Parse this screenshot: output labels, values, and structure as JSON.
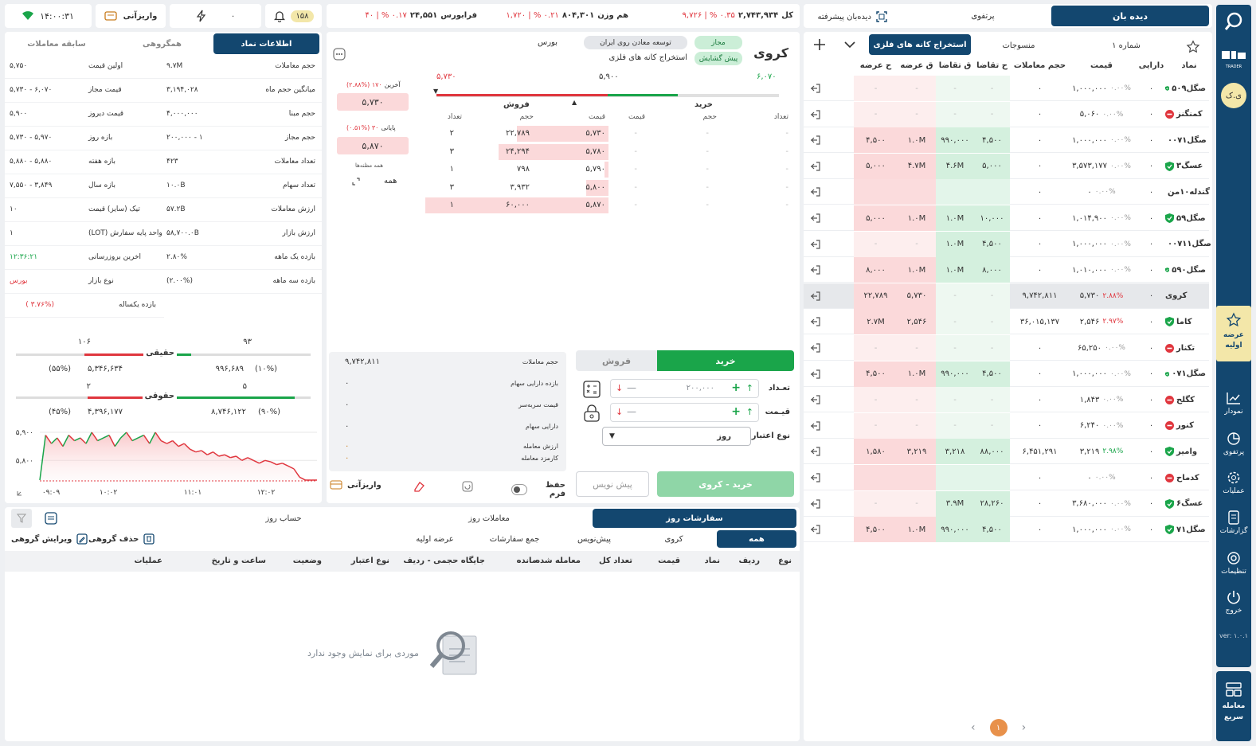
{
  "header": {
    "watch_tab": "دیده بان",
    "portfolio_tab": "پرتفوی",
    "advanced_watch": "دیده‌بان پیشرفته",
    "total_label": "کل",
    "total_value": "۲,۷۴۳,۹۳۴",
    "total_change": "۰.۳۵ % | ۹,۷۲۶",
    "weighted_label": "هم وزن",
    "weighted_value": "۸۰۴,۳۰۱",
    "weighted_change": "۰.۲۱ % | ۱,۷۲۰",
    "farabourse_label": "فرابورس",
    "farabourse_value": "۲۴,۵۵۱",
    "farabourse_change": "۰.۱۷ % | ۴۰",
    "notif_count": "۱۵۸",
    "lightning_count": "۰",
    "deposit_label": "واریزآنی",
    "clock": "۱۴:۰۰:۳۱"
  },
  "sidebar": {
    "avatar": "ی.ک",
    "brand": "TRADER",
    "items": [
      "عرضه اولیه",
      "نمودار",
      "پرتفوی",
      "عملیات",
      "گزارشات",
      "تنظیمات",
      "خروج"
    ],
    "version": "ver: ۱.۰.۱",
    "quick_trade": "معامله سریع"
  },
  "watchlist": {
    "tabs": [
      "شماره ۱",
      "منسوجات",
      "استخراج کانه های فلزی"
    ],
    "columns": [
      "نماد",
      "دارایی",
      "قیمت",
      "حجم معاملات",
      "ح تقاضا",
      "ق تقاضا",
      "ق عرضه",
      "ح عرضه"
    ],
    "rows": [
      {
        "sym": "صگل۵۰۹",
        "st": "g",
        "asset": "۰",
        "pct": "۰.۰۰%",
        "price": "۱,۰۰۰,۰۰۰",
        "vol": "۰",
        "dv": "-",
        "dp": "-",
        "sp": "-",
        "sv": "-"
      },
      {
        "sym": "کمنگنز",
        "st": "r",
        "asset": "۰",
        "pct": "۰.۰۰%",
        "price": "۵,۰۶۰",
        "vol": "۰",
        "dv": "-",
        "dp": "-",
        "sp": "-",
        "sv": "-"
      },
      {
        "sym": "صگل۰۰۷۱",
        "st": "g",
        "asset": "۰",
        "pct": "۰.۰۰%",
        "price": "۱,۰۰۰,۰۰۰",
        "vol": "۰",
        "dv": "۴,۵۰۰",
        "dp": "۹۹۰,۰۰۰",
        "sp": "۱.۰M",
        "sv": "۴,۵۰۰"
      },
      {
        "sym": "عسگ۳",
        "st": "g",
        "asset": "۰",
        "pct": "۰.۰۰%",
        "price": "۳,۵۷۳,۱۷۷",
        "vol": "۰",
        "dv": "۵,۰۰۰",
        "dp": "۴.۶M",
        "sp": "۴.۷M",
        "sv": "۵,۰۰۰"
      },
      {
        "sym": "گندله۱۰من",
        "st": "r",
        "asset": "۰",
        "pct": "۰.۰۰%",
        "price": "۰",
        "vol": "۰",
        "dv": "",
        "dp": "",
        "sp": "",
        "sv": ""
      },
      {
        "sym": "صگل۵۹",
        "st": "g",
        "asset": "۰",
        "pct": "۰.۰۰%",
        "price": "۱,۰۱۴,۹۰۰",
        "vol": "۰",
        "dv": "۱۰,۰۰۰",
        "dp": "۱.۰M",
        "sp": "۱.۰M",
        "sv": "۵,۰۰۰"
      },
      {
        "sym": "صگل۰۰۷۱۱",
        "st": "g",
        "asset": "۰",
        "pct": "۰.۰۰%",
        "price": "۱,۰۰۰,۰۰۰",
        "vol": "۰",
        "dv": "۴,۵۰۰",
        "dp": "۱.۰M",
        "sp": "-",
        "sv": "-"
      },
      {
        "sym": "صگل۵۹۰",
        "st": "g",
        "asset": "۰",
        "pct": "۰.۰۰%",
        "price": "۱,۰۱۰,۰۰۰",
        "vol": "۰",
        "dv": "۸,۰۰۰",
        "dp": "۱.۰M",
        "sp": "۱.۰M",
        "sv": "۸,۰۰۰"
      },
      {
        "sym": "کروی",
        "st": "none",
        "asset": "۰",
        "pct": "۲.۸۸%",
        "pneg": "r",
        "price": "۵,۷۳۰",
        "vol": "۹,۷۴۲,۸۱۱",
        "dv": "-",
        "dp": "-",
        "sp": "۵,۷۳۰",
        "sv": "۲۲,۷۸۹"
      },
      {
        "sym": "کاما",
        "st": "g",
        "asset": "۰",
        "pct": "۲.۹۷%",
        "pneg": "r",
        "price": "۲,۵۴۶",
        "vol": "۳۶,۰۱۵,۱۳۷",
        "dv": "-",
        "dp": "-",
        "sp": "۲,۵۴۶",
        "sv": "۲.۷M"
      },
      {
        "sym": "تکنار",
        "st": "r",
        "asset": "۰",
        "pct": "۰.۰۰%",
        "price": "۶۵,۲۵۰",
        "vol": "۰",
        "dv": "-",
        "dp": "-",
        "sp": "-",
        "sv": "-"
      },
      {
        "sym": "صگل۰۷۱",
        "st": "g",
        "asset": "۰",
        "pct": "۰.۰۰%",
        "price": "۱,۰۰۰,۰۰۰",
        "vol": "۰",
        "dv": "۴,۵۰۰",
        "dp": "۹۹۰,۰۰۰",
        "sp": "۱.۰M",
        "sv": "۴,۵۰۰"
      },
      {
        "sym": "کگلح",
        "st": "r",
        "asset": "۰",
        "pct": "۰.۰۰%",
        "price": "۱,۸۴۳",
        "vol": "۰",
        "dv": "-",
        "dp": "-",
        "sp": "-",
        "sv": "-"
      },
      {
        "sym": "کنور",
        "st": "r",
        "asset": "۰",
        "pct": "۰.۰۰%",
        "price": "۶,۲۴۰",
        "vol": "۰",
        "dv": "-",
        "dp": "-",
        "sp": "-",
        "sv": "-"
      },
      {
        "sym": "وامیر",
        "st": "g",
        "asset": "۰",
        "pct": "۲.۹۸%",
        "pneg": "g",
        "price": "۳,۲۱۹",
        "vol": "۶,۴۵۱,۲۹۱",
        "dv": "۸۸,۰۰۰",
        "dp": "۳,۲۱۸",
        "sp": "۳,۲۱۹",
        "sv": "۱,۵۸۰"
      },
      {
        "sym": "کدماح",
        "st": "r",
        "asset": "۰",
        "pct": "۰.۰۰%",
        "price": "۰",
        "vol": "۰",
        "dv": "",
        "dp": "",
        "sp": "",
        "sv": ""
      },
      {
        "sym": "عسگ۶",
        "st": "g",
        "asset": "۰",
        "pct": "۰.۰۰%",
        "price": "۳,۶۸۰,۰۰۰",
        "vol": "۰",
        "dv": "۲۸,۲۶۰",
        "dp": "۳.۹M",
        "sp": "-",
        "sv": "-"
      },
      {
        "sym": "صگل۷۱",
        "st": "g",
        "asset": "۰",
        "pct": "۰.۰۰%",
        "price": "۱,۰۰۰,۰۰۰",
        "vol": "۰",
        "dv": "۴,۵۰۰",
        "dp": "۹۹۰,۰۰۰",
        "sp": "۱.۰M",
        "sv": "۴,۵۰۰"
      }
    ],
    "page": "۱"
  },
  "symbol": {
    "name": "کروی",
    "company": "توسعه معادن روی ایران",
    "industry": "استخراج کانه های فلزی",
    "market": "بورس",
    "status": "مجاز",
    "state": "پیش گشایش",
    "range_low": "۵,۷۳۰",
    "range_mid": "۵,۹۰۰",
    "range_high": "۶,۰۷۰",
    "last_label": "آخرین",
    "last_change": "۱۷۰ (۲.۸۸%)",
    "last_price": "۵,۷۳۰",
    "close_label": "پایانی",
    "close_change": "۳۰ (۰.۵۱%)",
    "close_price": "۵,۸۷۰",
    "suspicious_label": "همه مظنه‌ها",
    "all_label": "همه"
  },
  "orderbook": {
    "buy_label": "خرید",
    "sell_label": "فروش",
    "cols": [
      "تعداد",
      "حجم",
      "قیمت",
      "قیمت",
      "حجم",
      "تعداد"
    ],
    "sell": [
      {
        "count": "۲",
        "vol": "۲۲,۷۸۹",
        "price": "۵,۷۳۰",
        "w": 0.5
      },
      {
        "count": "۳",
        "vol": "۲۴,۲۹۴",
        "price": "۵,۷۸۰",
        "w": 0.6
      },
      {
        "count": "۱",
        "vol": "۷۹۸",
        "price": "۵,۷۹۰",
        "w": 0.02
      },
      {
        "count": "۳",
        "vol": "۳,۹۳۲",
        "price": "۵,۸۰۰",
        "w": 0.12
      },
      {
        "count": "۱",
        "vol": "۶۰,۰۰۰",
        "price": "۵,۸۷۰",
        "w": 1.0
      }
    ]
  },
  "stats": {
    "rows": [
      [
        "حجم معاملات",
        "۹,۷۴۲,۸۱۱"
      ],
      [
        "بازده دارایی سهام",
        "۰"
      ],
      [
        "قیمت سربه‌سر",
        "۰"
      ],
      [
        "دارایی سهام",
        "۰"
      ],
      [
        "ارزش معامله",
        "۰"
      ],
      [
        "کارمزد معامله",
        "۰"
      ]
    ]
  },
  "order_form": {
    "buy_tab": "خرید",
    "sell_tab": "فروش",
    "qty_label": "تعـداد",
    "qty_value": "۲۰۰,۰۰۰",
    "price_label": "قیـمت",
    "validity_label": "نوع اعتبار",
    "validity_value": "روز",
    "submit": "خرید - کروی",
    "draft": "پیش نویس",
    "save_form": "حفظ فرم",
    "deposit": "واریزآنی"
  },
  "info": {
    "tabs": [
      "اطلاعات نماد",
      "همگروهی",
      "سابقه معاملات"
    ],
    "rows": [
      [
        "حجم معاملات",
        "۹.۷M",
        "اولین قیمت",
        "۵,۷۵۰",
        ""
      ],
      [
        "میانگین حجم ماه",
        "۳,۱۹۴,۰۲۸",
        "قیمت مجاز",
        "۶,۰۷۰ - ۵,۷۳۰",
        ""
      ],
      [
        "حجم مبنا",
        "۴,۰۰۰,۰۰۰",
        "قیمت دیروز",
        "۵,۹۰۰",
        ""
      ],
      [
        "حجم مجاز",
        "۱ - ۲۰۰,۰۰۰",
        "بازه روز",
        "۵,۹۷۰ - ۵,۷۳۰",
        ""
      ],
      [
        "تعداد معاملات",
        "۴۲۳",
        "بازه هفته",
        "۵,۸۸۰ - ۵,۸۸۰",
        ""
      ],
      [
        "تعداد سهام",
        "۱۰.۰B",
        "بازه سال",
        "۳,۸۴۹ - ۷,۵۵۰",
        ""
      ],
      [
        "ارزش معاملات",
        "۵۷.۲B",
        "تیک (سایز) قیمت",
        "۱۰",
        ""
      ],
      [
        "ارزش بازار",
        "۵۸,۷۰۰.۰B",
        "واحد پایه سفارش (LOT)",
        "۱",
        ""
      ],
      [
        "بازده یک ماهه",
        "۲.۸۰%",
        "اخرین بروزرسانی",
        "۱۲:۳۶:۲۱",
        "g"
      ],
      [
        "بازده سه ماهه",
        "(۲.۰۰%)",
        "نوع بازار",
        "بورس",
        "r"
      ],
      [
        "بازده یکساله",
        "(۳.۷۶% )",
        "",
        "",
        "r"
      ]
    ]
  },
  "players": {
    "real_label": "حقیقی",
    "real_buy": "۹۳",
    "real_sell": "۱۰۶",
    "real_buy_vol": "۹۹۶,۶۸۹",
    "real_buy_pct": "(۱۰%)",
    "real_sell_vol": "۵,۳۴۶,۶۳۴",
    "real_sell_pct": "(۵۵%)",
    "legal_label": "حقوقی",
    "legal_buy": "۵",
    "legal_sell": "۲",
    "legal_buy_vol": "۸,۷۴۶,۱۲۲",
    "legal_buy_pct": "(۹۰%)",
    "legal_sell_vol": "۴,۳۹۶,۱۷۷",
    "legal_sell_pct": "(۴۵%)"
  },
  "chart_data": {
    "type": "line",
    "ylabels": [
      "۵,۹۰۰",
      "۵,۸۰۰"
    ],
    "xlabels": [
      "۰۹:۰۹",
      "۱۰:۰۲",
      "۱۱:۰۱",
      "۱۲:۰۲"
    ],
    "y": [
      5730,
      5890,
      5860,
      5880,
      5850,
      5890,
      5870,
      5880,
      5860,
      5900,
      5870,
      5880,
      5890,
      5850,
      5880,
      5900,
      5870,
      5880,
      5890,
      5860,
      5900,
      5870,
      5860,
      5870,
      5850,
      5860,
      5840,
      5830,
      5835,
      5820,
      5830,
      5815,
      5820,
      5810,
      5815,
      5800,
      5810,
      5800,
      5790,
      5800,
      5795,
      5785,
      5790,
      5780,
      5770,
      5740,
      5730,
      5730,
      5730
    ]
  },
  "orders": {
    "tabs": [
      "سفارشات روز",
      "معاملات روز",
      "حساب روز"
    ],
    "subtabs": [
      "همه",
      "کروی",
      "پیش‌نویس",
      "جمع سفارشات",
      "عرضه اولیه"
    ],
    "group_delete": "حذف گروهی",
    "group_edit": "ویرایش گروهی",
    "columns": [
      "نوع",
      "ردیف",
      "نماد",
      "قیمت",
      "تعداد کل",
      "معامله شده",
      "مانده",
      "جایگاه حجمی - ردیف",
      "نوع اعتبار",
      "وضعیت",
      "ساعت و تاریخ",
      "عملیات"
    ],
    "empty": "موردی برای نمایش وجود ندارد"
  },
  "colors": {
    "navy": "#13476f",
    "green": "#1aa54a",
    "red": "#e0363e",
    "buyBg": "#d4f0de",
    "sellBg": "#fbd9da"
  }
}
